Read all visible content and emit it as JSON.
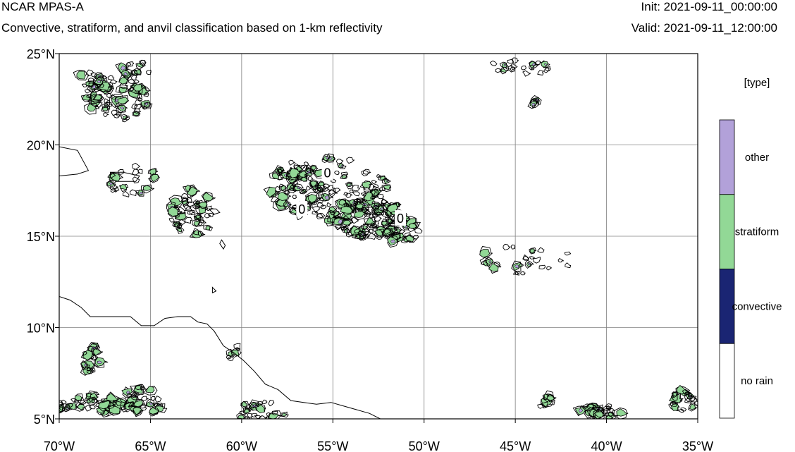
{
  "header": {
    "model": "NCAR MPAS-A",
    "description": "Convective, stratiform, and anvil classification based on 1-km reflectivity",
    "init": "Init: 2021-09-11_00:00:00",
    "valid": "Valid: 2021-09-11_12:00:00"
  },
  "map": {
    "lon_range": [
      -70,
      -35
    ],
    "lat_range": [
      5,
      25
    ],
    "lon_ticks": [
      {
        "value": -70,
        "label": "70°W"
      },
      {
        "value": -65,
        "label": "65°W"
      },
      {
        "value": -60,
        "label": "60°W"
      },
      {
        "value": -55,
        "label": "55°W"
      },
      {
        "value": -50,
        "label": "50°W"
      },
      {
        "value": -45,
        "label": "45°W"
      },
      {
        "value": -40,
        "label": "40°W"
      },
      {
        "value": -35,
        "label": "35°W"
      }
    ],
    "lat_ticks": [
      {
        "value": 25,
        "label": "25°N"
      },
      {
        "value": 20,
        "label": "20°N"
      },
      {
        "value": 15,
        "label": "15°N"
      },
      {
        "value": 10,
        "label": "10°N"
      },
      {
        "value": 5,
        "label": "5°N"
      }
    ],
    "gridlines": true,
    "contour_labels": [
      {
        "text": "0",
        "lon": -55.3,
        "lat": 18.5
      },
      {
        "text": "0",
        "lon": -56.7,
        "lat": 16.5
      },
      {
        "text": "0",
        "lon": -51.3,
        "lat": 16.0
      }
    ],
    "coastline": [
      [
        -70,
        11.7
      ],
      [
        -69.4,
        11.5
      ],
      [
        -68.8,
        11.1
      ],
      [
        -68.3,
        10.6
      ],
      [
        -67.6,
        10.6
      ],
      [
        -66.8,
        10.6
      ],
      [
        -66.1,
        10.6
      ],
      [
        -65.5,
        10.1
      ],
      [
        -64.8,
        10.1
      ],
      [
        -64.2,
        10.5
      ],
      [
        -63.5,
        10.6
      ],
      [
        -62.8,
        10.6
      ],
      [
        -62.4,
        10.3
      ],
      [
        -61.9,
        10.2
      ],
      [
        -61.5,
        9.8
      ],
      [
        -61.0,
        9.0
      ],
      [
        -60.4,
        8.6
      ],
      [
        -59.9,
        8.2
      ],
      [
        -59.3,
        7.6
      ],
      [
        -58.7,
        6.9
      ],
      [
        -58.0,
        6.6
      ],
      [
        -57.3,
        6.0
      ],
      [
        -56.6,
        5.9
      ],
      [
        -55.9,
        5.8
      ],
      [
        -55.1,
        5.9
      ],
      [
        -54.4,
        5.7
      ],
      [
        -53.7,
        5.5
      ],
      [
        -53.0,
        5.3
      ],
      [
        -52.4,
        5.0
      ]
    ],
    "land_outline_puerto_rico": [
      [
        -67.2,
        18.5
      ],
      [
        -66.5,
        18.5
      ],
      [
        -65.6,
        18.3
      ],
      [
        -65.8,
        18.0
      ],
      [
        -66.9,
        18.0
      ],
      [
        -67.2,
        18.2
      ]
    ],
    "land_outline_hispaniola": [
      [
        -70,
        19.9
      ],
      [
        -69.0,
        19.7
      ],
      [
        -68.4,
        18.6
      ],
      [
        -69.0,
        18.4
      ],
      [
        -70,
        18.3
      ]
    ],
    "land_outline_islands": [
      [
        [
          -61.8,
          16.5
        ],
        [
          -61.5,
          16.2
        ],
        [
          -61.2,
          16.3
        ],
        [
          -61.4,
          16.5
        ]
      ],
      [
        [
          -61.1,
          14.8
        ],
        [
          -60.9,
          14.5
        ],
        [
          -61.0,
          14.3
        ],
        [
          -61.2,
          14.6
        ]
      ],
      [
        [
          -61.6,
          12.2
        ],
        [
          -61.4,
          12.0
        ],
        [
          -61.6,
          11.9
        ]
      ]
    ],
    "precip_cells": [
      {
        "lon": -66.8,
        "lat": 22.5,
        "rlon": 1.8,
        "rlat": 1.2,
        "type": "stratiform",
        "density": 60
      },
      {
        "lon": -68.2,
        "lat": 23.3,
        "rlon": 0.9,
        "rlat": 0.8,
        "type": "stratiform",
        "density": 25
      },
      {
        "lon": -65.8,
        "lat": 24.0,
        "rlon": 0.8,
        "rlat": 0.6,
        "type": "stratiform",
        "density": 15
      },
      {
        "lon": -62.7,
        "lat": 16.3,
        "rlon": 1.2,
        "rlat": 1.3,
        "type": "stratiform",
        "density": 50
      },
      {
        "lon": -66.0,
        "lat": 18.0,
        "rlon": 1.5,
        "rlat": 0.9,
        "type": "stratiform",
        "density": 20
      },
      {
        "lon": -55.0,
        "lat": 17.5,
        "rlon": 3.2,
        "rlat": 1.8,
        "type": "stratiform",
        "density": 120
      },
      {
        "lon": -53.0,
        "lat": 16.0,
        "rlon": 2.2,
        "rlat": 1.2,
        "type": "stratiform",
        "density": 110
      },
      {
        "lon": -57.0,
        "lat": 17.5,
        "rlon": 1.5,
        "rlat": 1.6,
        "type": "stratiform",
        "density": 50
      },
      {
        "lon": -51.5,
        "lat": 15.3,
        "rlon": 1.3,
        "rlat": 0.7,
        "type": "stratiform",
        "density": 40
      },
      {
        "lon": -44.8,
        "lat": 24.2,
        "rlon": 1.6,
        "rlat": 0.5,
        "type": "stratiform",
        "density": 20
      },
      {
        "lon": -43.9,
        "lat": 22.3,
        "rlon": 0.3,
        "rlat": 0.2,
        "type": "stratiform",
        "density": 6
      },
      {
        "lon": -44.5,
        "lat": 13.7,
        "rlon": 2.6,
        "rlat": 0.8,
        "type": "stratiform",
        "density": 25
      },
      {
        "lon": -68.2,
        "lat": 8.3,
        "rlon": 0.5,
        "rlat": 0.8,
        "type": "stratiform",
        "density": 20
      },
      {
        "lon": -67.8,
        "lat": 5.8,
        "rlon": 1.6,
        "rlat": 0.6,
        "type": "stratiform",
        "density": 40
      },
      {
        "lon": -65.5,
        "lat": 6.0,
        "rlon": 1.4,
        "rlat": 0.8,
        "type": "stratiform",
        "density": 35
      },
      {
        "lon": -69.8,
        "lat": 5.6,
        "rlon": 0.3,
        "rlat": 0.4,
        "type": "stratiform",
        "density": 8
      },
      {
        "lon": -40.3,
        "lat": 5.4,
        "rlon": 1.2,
        "rlat": 0.4,
        "type": "stratiform",
        "density": 25
      },
      {
        "lon": -43.3,
        "lat": 5.9,
        "rlon": 0.4,
        "rlat": 0.4,
        "type": "stratiform",
        "density": 8
      },
      {
        "lon": -35.7,
        "lat": 6.0,
        "rlon": 0.8,
        "rlat": 0.6,
        "type": "stratiform",
        "density": 20
      },
      {
        "lon": -58.9,
        "lat": 5.4,
        "rlon": 1.5,
        "rlat": 0.6,
        "type": "stratiform",
        "density": 25
      },
      {
        "lon": -60.3,
        "lat": 8.6,
        "rlon": 0.6,
        "rlat": 0.4,
        "type": "stratiform",
        "density": 6
      }
    ]
  },
  "legend": {
    "title": "[type]",
    "items": [
      {
        "label": "other",
        "color": "#b2a1d9"
      },
      {
        "label": "stratiform",
        "color": "#92d896"
      },
      {
        "label": "convective",
        "color": "#1a2573"
      },
      {
        "label": "no rain",
        "color": "#ffffff"
      }
    ]
  }
}
